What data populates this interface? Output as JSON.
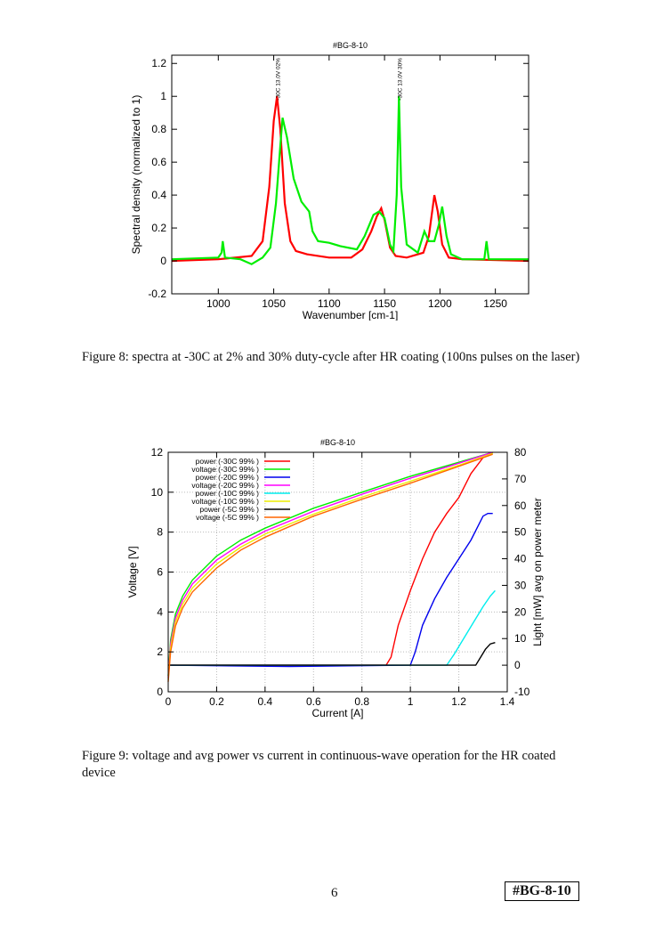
{
  "chart_data": [
    {
      "type": "line",
      "title": "#BG-8-10",
      "xlabel": "Wavenumber [cm-1]",
      "ylabel": "Spectral density (normalized to 1)",
      "xlim": [
        958,
        1280
      ],
      "ylim": [
        -0.2,
        1.25
      ],
      "xticks": [
        1000,
        1050,
        1100,
        1150,
        1200,
        1250
      ],
      "yticks": [
        -0.2,
        0,
        0.2,
        0.4,
        0.6,
        0.8,
        1,
        1.2
      ],
      "grid": false,
      "annotations": [
        {
          "text": "-30C 13.0V 02%",
          "x": 1053
        },
        {
          "text": "-30C 13.0V 30%",
          "x": 1163
        }
      ],
      "series": [
        {
          "color": "#ff0000",
          "x": [
            958,
            1000,
            1030,
            1040,
            1046,
            1050,
            1053,
            1056,
            1060,
            1065,
            1070,
            1080,
            1100,
            1120,
            1130,
            1138,
            1143,
            1147,
            1150,
            1155,
            1160,
            1170,
            1185,
            1190,
            1195,
            1198,
            1202,
            1208,
            1220,
            1280
          ],
          "y": [
            0,
            0.01,
            0.03,
            0.12,
            0.45,
            0.85,
            1.0,
            0.8,
            0.35,
            0.12,
            0.06,
            0.04,
            0.02,
            0.02,
            0.07,
            0.18,
            0.27,
            0.32,
            0.25,
            0.08,
            0.03,
            0.02,
            0.05,
            0.15,
            0.4,
            0.3,
            0.1,
            0.02,
            0.01,
            0
          ]
        },
        {
          "color": "#00ee00",
          "x": [
            958,
            1000,
            1003,
            1004,
            1006,
            1020,
            1030,
            1040,
            1047,
            1052,
            1056,
            1058,
            1062,
            1068,
            1075,
            1082,
            1085,
            1090,
            1100,
            1110,
            1125,
            1132,
            1140,
            1145,
            1150,
            1155,
            1158,
            1161,
            1163,
            1165,
            1170,
            1180,
            1186,
            1190,
            1195,
            1199,
            1202,
            1206,
            1210,
            1220,
            1240,
            1242,
            1244,
            1260,
            1280
          ],
          "y": [
            0.01,
            0.02,
            0.05,
            0.12,
            0.02,
            0.01,
            -0.02,
            0.02,
            0.08,
            0.35,
            0.7,
            0.87,
            0.75,
            0.5,
            0.36,
            0.3,
            0.18,
            0.12,
            0.11,
            0.09,
            0.07,
            0.15,
            0.28,
            0.3,
            0.26,
            0.1,
            0.06,
            0.4,
            1.0,
            0.45,
            0.1,
            0.05,
            0.18,
            0.12,
            0.12,
            0.22,
            0.33,
            0.15,
            0.04,
            0.01,
            0.01,
            0.12,
            0.01,
            0.01,
            0.01
          ]
        }
      ]
    },
    {
      "type": "line",
      "title": "#BG-8-10",
      "xlabel": "Current [A]",
      "ylabel": "Voltage [V]",
      "y2label": "Light [mW] avg on power meter",
      "xlim": [
        0,
        1.4
      ],
      "ylim": [
        0,
        12
      ],
      "y2lim": [
        -10,
        80
      ],
      "xticks": [
        0,
        0.2,
        0.4,
        0.6,
        0.8,
        1,
        1.2,
        1.4
      ],
      "yticks": [
        0,
        2,
        4,
        6,
        8,
        10,
        12
      ],
      "y2ticks": [
        -10,
        0,
        10,
        20,
        30,
        40,
        50,
        60,
        70,
        80
      ],
      "grid": true,
      "legend": "top-left",
      "series": [
        {
          "name": "power (-30C 99% )",
          "color": "#ff0000",
          "axis": "y2",
          "x": [
            0,
            0.9,
            0.92,
            0.95,
            1.0,
            1.05,
            1.1,
            1.15,
            1.2,
            1.25,
            1.3,
            1.34
          ],
          "y": [
            0,
            0,
            3,
            15,
            28,
            40,
            50,
            57,
            63,
            72,
            78,
            80
          ]
        },
        {
          "name": "voltage (-30C 99% )",
          "color": "#00ee00",
          "axis": "y",
          "x": [
            0,
            0.01,
            0.03,
            0.06,
            0.1,
            0.2,
            0.3,
            0.4,
            0.6,
            0.8,
            1,
            1.2,
            1.34
          ],
          "y": [
            0.8,
            2.6,
            3.9,
            4.8,
            5.6,
            6.8,
            7.6,
            8.2,
            9.2,
            10.0,
            10.8,
            11.5,
            12.0
          ]
        },
        {
          "name": "power (-20C 99% )",
          "color": "#0000ee",
          "axis": "y2",
          "x": [
            0,
            0.5,
            1.0,
            1.02,
            1.05,
            1.1,
            1.15,
            1.2,
            1.25,
            1.3,
            1.32,
            1.34
          ],
          "y": [
            0,
            -0.5,
            0,
            5,
            15,
            25,
            33,
            40,
            47,
            56,
            57,
            57
          ]
        },
        {
          "name": "voltage (-20C 99% )",
          "color": "#ff00ff",
          "axis": "y",
          "x": [
            0,
            0.01,
            0.03,
            0.06,
            0.1,
            0.2,
            0.3,
            0.4,
            0.6,
            0.8,
            1,
            1.2,
            1.34
          ],
          "y": [
            0.7,
            2.4,
            3.7,
            4.6,
            5.4,
            6.6,
            7.4,
            8.05,
            9.05,
            9.9,
            10.7,
            11.45,
            12.0
          ]
        },
        {
          "name": "power (-10C 99% )",
          "color": "#00eeee",
          "axis": "y2",
          "x": [
            0,
            1.15,
            1.18,
            1.22,
            1.26,
            1.3,
            1.33,
            1.35
          ],
          "y": [
            0,
            0,
            4,
            10,
            16,
            22,
            26,
            28
          ]
        },
        {
          "name": "voltage (-10C 99% )",
          "color": "#eeee00",
          "axis": "y",
          "x": [
            0,
            0.01,
            0.03,
            0.06,
            0.1,
            0.2,
            0.3,
            0.4,
            0.6,
            0.8,
            1,
            1.2,
            1.34
          ],
          "y": [
            0.6,
            2.2,
            3.5,
            4.4,
            5.2,
            6.4,
            7.25,
            7.9,
            8.9,
            9.75,
            10.55,
            11.35,
            11.95
          ]
        },
        {
          "name": "power (-5C 99% )",
          "color": "#000000",
          "axis": "y2",
          "x": [
            0,
            1.27,
            1.29,
            1.31,
            1.33,
            1.35
          ],
          "y": [
            0,
            0,
            3,
            6,
            8,
            8.5
          ]
        },
        {
          "name": "voltage (-5C 99% )",
          "color": "#ff6600",
          "axis": "y",
          "x": [
            0,
            0.01,
            0.03,
            0.06,
            0.1,
            0.2,
            0.3,
            0.4,
            0.6,
            0.8,
            1,
            1.2,
            1.34
          ],
          "y": [
            0.5,
            2.0,
            3.3,
            4.2,
            5.0,
            6.2,
            7.1,
            7.75,
            8.8,
            9.65,
            10.45,
            11.3,
            11.9
          ]
        }
      ]
    }
  ],
  "captions": {
    "fig8": "Figure 8: spectra at -30C at 2% and 30% duty-cycle after HR coating (100ns pulses on the laser)",
    "fig9": "Figure 9: voltage and avg power vs current in continuous-wave operation for the HR coated device"
  },
  "footer": {
    "page_number": "6",
    "tag": "#BG-8-10"
  }
}
